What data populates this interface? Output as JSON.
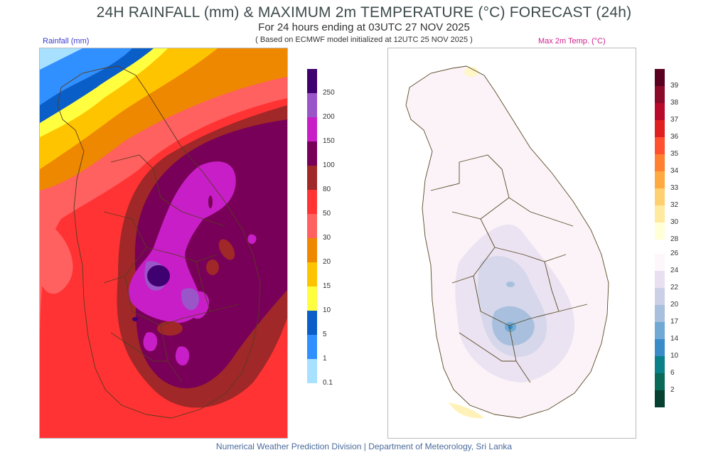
{
  "header": {
    "title": "24H RAINFALL (mm) & MAXIMUM 2m TEMPERATURE (°C) FORECAST (24h)",
    "subtitle": "For 24 hours ending at 03UTC 27 NOV 2025",
    "note": "( Based on ECMWF model initialized at 12UTC 25 NOV 2025 )"
  },
  "rainfall_map": {
    "label": "Rainfall (mm)",
    "legend": {
      "labels": [
        "250",
        "200",
        "150",
        "100",
        "80",
        "50",
        "30",
        "20",
        "15",
        "10",
        "5",
        "1",
        "0.1"
      ],
      "colors": [
        "#3f0070",
        "#9a55c8",
        "#c81ec8",
        "#780058",
        "#a02828",
        "#ff3333",
        "#ff6060",
        "#ee8800",
        "#ffc400",
        "#ffff40",
        "#0a5ec8",
        "#3090ff",
        "#a8e0ff"
      ]
    }
  },
  "temperature_map": {
    "label": "Max 2m Temp. (°C)",
    "legend_hot": {
      "labels": [
        "39",
        "38",
        "37",
        "36",
        "35",
        "34",
        "33",
        "32",
        "30",
        "28"
      ],
      "colors": [
        "#5a0020",
        "#8a0a2a",
        "#b80a2a",
        "#e02020",
        "#ff5030",
        "#ff8030",
        "#ffaa40",
        "#ffd070",
        "#ffeaa0",
        "#ffffd8"
      ]
    },
    "legend_cool": {
      "labels": [
        "26",
        "24",
        "22",
        "20",
        "17",
        "14",
        "10",
        "6",
        "2"
      ],
      "colors": [
        "#fdf6fb",
        "#e8e0f0",
        "#ccd0e6",
        "#a8c0de",
        "#70aad4",
        "#3a8cc8",
        "#0a8088",
        "#0a6a58",
        "#064030"
      ]
    }
  },
  "footer": "Numerical Weather Prediction Division | Department of Meteorology, Sri Lanka"
}
